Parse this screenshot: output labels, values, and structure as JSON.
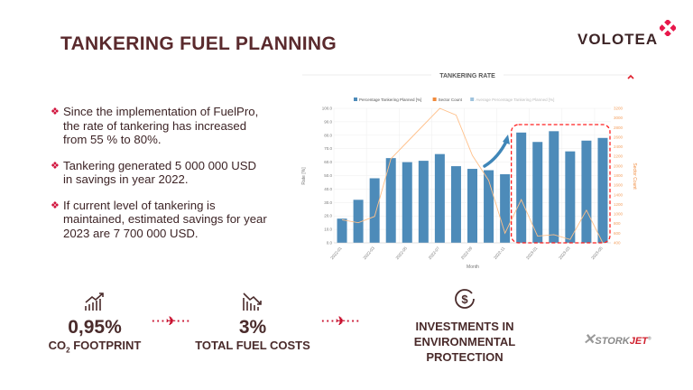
{
  "title": "TANKERING FUEL PLANNING",
  "logo": "VOLOTEA",
  "bullets": [
    "Since the implementation of FuelPro, the rate of tankering has increased from 55 % to 80%.",
    "Tankering generated 5 000 000 USD in savings in year 2022.",
    "If current level of tankering is maintained, estimated savings for year 2023 are 7 700 000 USD."
  ],
  "stats": [
    {
      "value": "0,95%",
      "label_pre": "CO",
      "label_sub": "2",
      "label_post": " FOOTPRINT",
      "icon": "chart-up-icon"
    },
    {
      "value": "3%",
      "label": "TOTAL FUEL COSTS",
      "icon": "chart-down-icon"
    },
    {
      "label_lines": [
        "INVESTMENTS IN",
        "ENVIRONMENTAL",
        "PROTECTION"
      ],
      "icon": "dollar-circle-icon"
    }
  ],
  "partner_logo": {
    "a": "STORK",
    "b": "JET",
    "reg": "®"
  },
  "colors": {
    "bar": "#4d8bb9",
    "line": "#ffc08a",
    "accent": "#d0103a",
    "highlight": "#ff2020"
  },
  "chart_data": {
    "type": "bar",
    "title": "TANKERING RATE",
    "xlabel": "Month",
    "ylabel": "Rate [%]",
    "y2label": "Sector Count",
    "legend": [
      "Percentage Tankering Planned [%]",
      "Sector Count",
      "Average Percentage Tankering Planned [%]"
    ],
    "legend_position": "top",
    "categories": [
      "2022-01",
      "2022-02",
      "2022-03",
      "2022-04",
      "2022-05",
      "2022-06",
      "2022-07",
      "2022-08",
      "2022-09",
      "2022-10",
      "2022-11",
      "2022-12",
      "2023-01",
      "2023-02",
      "2023-03",
      "2023-04",
      "2023-05"
    ],
    "series": [
      {
        "name": "Percentage Tankering Planned [%]",
        "type": "bar",
        "axis": "left",
        "values": [
          18,
          32,
          48,
          63,
          60,
          61,
          66,
          57,
          55,
          54,
          51,
          82,
          75,
          83,
          68,
          76,
          78
        ]
      },
      {
        "name": "Sector Count",
        "type": "line",
        "axis": "right",
        "values": [
          880,
          820,
          950,
          2150,
          2500,
          2850,
          3200,
          3060,
          2220,
          1700,
          600,
          1300,
          540,
          570,
          470,
          1080,
          400
        ]
      }
    ],
    "ylim": [
      0,
      100
    ],
    "y2lim": [
      400,
      3200
    ],
    "grid": true,
    "highlight_range": [
      "2022-12",
      "2023-05"
    ]
  }
}
